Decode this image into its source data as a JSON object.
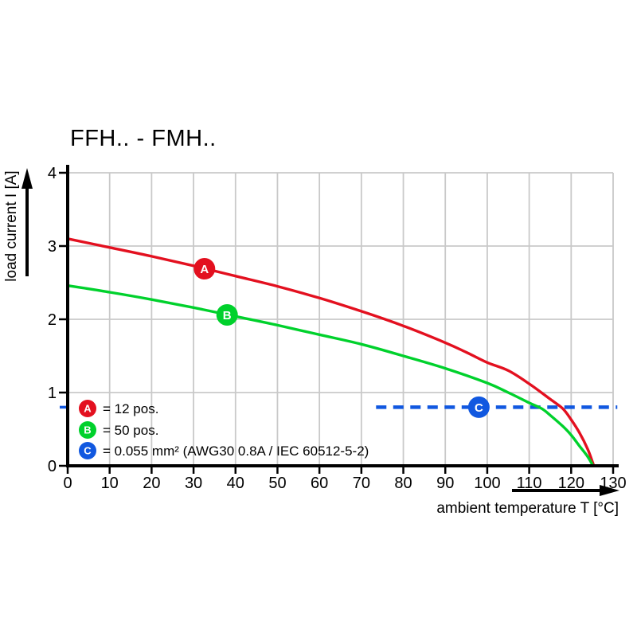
{
  "chart_data": {
    "type": "line",
    "title": "FFH.. - FMH..",
    "xlabel": "ambient temperature T [°C]",
    "ylabel": "load current I [A]",
    "xlim": [
      0,
      130
    ],
    "ylim": [
      0,
      4
    ],
    "x_ticks": [
      0,
      10,
      20,
      30,
      40,
      50,
      60,
      70,
      80,
      90,
      100,
      110,
      120,
      130
    ],
    "y_ticks": [
      0,
      1,
      2,
      3,
      4
    ],
    "grid": true,
    "grid_color": "#c9c9c9",
    "axis_color": "#000000",
    "series": [
      {
        "id": "A",
        "label": "12 pos.",
        "color": "#e3101f",
        "marker": {
          "x": 32.6,
          "y": 2.69
        },
        "points": [
          [
            0,
            3.1
          ],
          [
            10,
            2.98
          ],
          [
            20,
            2.86
          ],
          [
            30,
            2.73
          ],
          [
            40,
            2.59
          ],
          [
            50,
            2.45
          ],
          [
            60,
            2.29
          ],
          [
            70,
            2.11
          ],
          [
            80,
            1.91
          ],
          [
            90,
            1.68
          ],
          [
            95,
            1.55
          ],
          [
            100,
            1.41
          ],
          [
            105,
            1.3
          ],
          [
            110,
            1.12
          ],
          [
            115,
            0.91
          ],
          [
            118,
            0.78
          ],
          [
            120,
            0.63
          ],
          [
            122,
            0.45
          ],
          [
            124,
            0.22
          ],
          [
            125.4,
            0
          ]
        ]
      },
      {
        "id": "B",
        "label": "50 pos.",
        "color": "#00d12c",
        "marker": {
          "x": 38,
          "y": 2.06
        },
        "points": [
          [
            0,
            2.46
          ],
          [
            10,
            2.37
          ],
          [
            20,
            2.27
          ],
          [
            30,
            2.16
          ],
          [
            40,
            2.04
          ],
          [
            50,
            1.92
          ],
          [
            60,
            1.79
          ],
          [
            70,
            1.66
          ],
          [
            80,
            1.5
          ],
          [
            90,
            1.33
          ],
          [
            100,
            1.13
          ],
          [
            105,
            1.0
          ],
          [
            110,
            0.86
          ],
          [
            113,
            0.78
          ],
          [
            115,
            0.69
          ],
          [
            118,
            0.54
          ],
          [
            120,
            0.42
          ],
          [
            122,
            0.27
          ],
          [
            124,
            0.12
          ],
          [
            125.2,
            0
          ]
        ]
      }
    ],
    "limit_line": {
      "id": "C",
      "label": "0.055 mm² (AWG30 0.8A / IEC 60512-5-2)",
      "color": "#1158e0",
      "y": 0.8,
      "x_start": 73.5,
      "x_end": 131,
      "marker_x": 98
    },
    "legend": [
      {
        "id": "A",
        "color": "#e3101f",
        "text": "= 12 pos."
      },
      {
        "id": "B",
        "color": "#00d12c",
        "text": "= 50 pos."
      },
      {
        "id": "C",
        "color": "#1158e0",
        "text": "= 0.055 mm² (AWG30 0.8A / IEC 60512-5-2)"
      }
    ]
  }
}
